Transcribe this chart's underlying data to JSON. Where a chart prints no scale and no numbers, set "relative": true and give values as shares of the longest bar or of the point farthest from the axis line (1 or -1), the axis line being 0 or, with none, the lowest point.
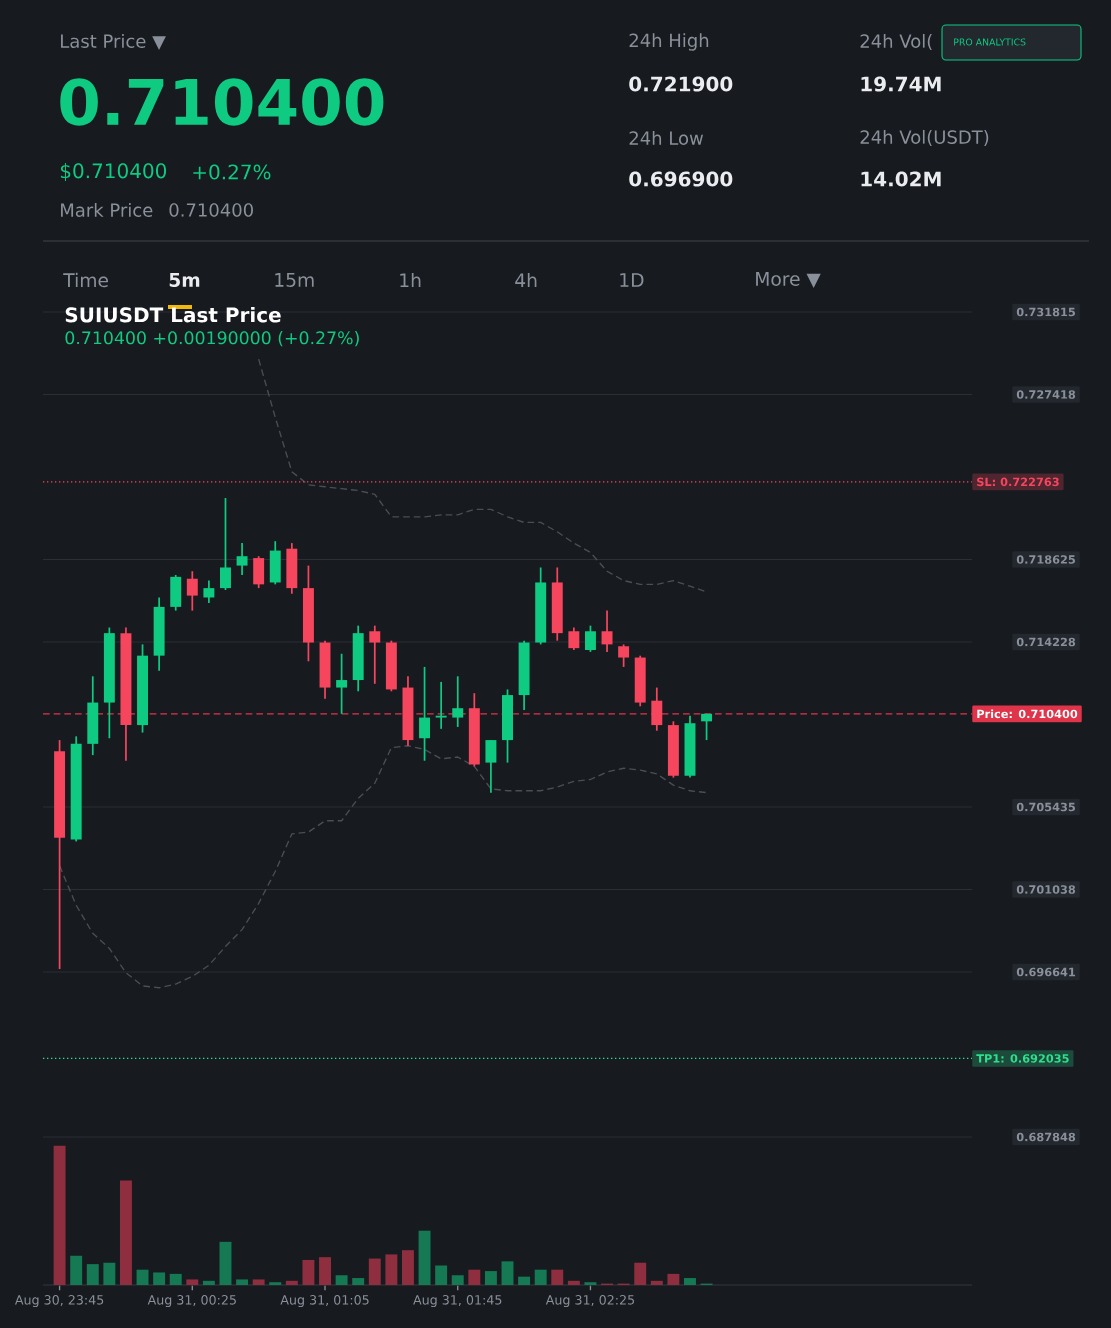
{
  "chart_data": [
    {
      "type": "candlestick",
      "title": "SUIUSDT Last Price",
      "subtitle": "0.710400  +0.00190000 (+0.27%)",
      "annotations": [
        "Last Price ▼",
        "0.710400",
        "$0.710400",
        "+0.27%",
        "Mark Price",
        "0.710400",
        "24h High",
        "0.721900",
        "24h Vol(",
        "19.74M",
        "24h Low",
        "0.696900",
        "24h Vol(USDT)",
        "14.02M",
        "PRO ANALYTICS",
        "Time",
        "5m",
        "15m",
        "1h",
        "4h",
        "1D",
        "More ▼"
      ],
      "categories": [
        null,
        null,
        null,
        null,
        null,
        null,
        null,
        null,
        null,
        null,
        null,
        null,
        null,
        null,
        null,
        null,
        null,
        null,
        null,
        null,
        null,
        null,
        null,
        null,
        null,
        null,
        null,
        null,
        null,
        null,
        null,
        null,
        null,
        null,
        null,
        null,
        null,
        null,
        null,
        null
      ],
      "ohlc": [
        [
          0.7084,
          0.709,
          0.6968,
          0.7038
        ],
        [
          0.7037,
          0.7092,
          0.7036,
          0.7088
        ],
        [
          0.7088,
          0.7124,
          0.7082,
          0.711
        ],
        [
          0.711,
          0.715,
          0.7091,
          0.7147
        ],
        [
          0.7147,
          0.715,
          0.7079,
          0.7098
        ],
        [
          0.7098,
          0.7141,
          0.7094,
          0.7135
        ],
        [
          0.7135,
          0.7166,
          0.7127,
          0.7161
        ],
        [
          0.7161,
          0.7178,
          0.7159,
          0.7177
        ],
        [
          0.7176,
          0.718,
          0.7159,
          0.7167
        ],
        [
          0.7166,
          0.7175,
          0.7163,
          0.7171
        ],
        [
          0.7171,
          0.7219,
          0.717,
          0.7182
        ],
        [
          0.7183,
          0.7195,
          0.7178,
          0.7188
        ],
        [
          0.7187,
          0.7188,
          0.7171,
          0.7173
        ],
        [
          0.7174,
          0.7196,
          0.7173,
          0.7191
        ],
        [
          0.7192,
          0.7195,
          0.7168,
          0.7171
        ],
        [
          0.7171,
          0.7183,
          0.7132,
          0.7142
        ],
        [
          0.7142,
          0.7143,
          0.7112,
          0.7118
        ],
        [
          0.7118,
          0.7136,
          0.7104,
          0.7122
        ],
        [
          0.7122,
          0.7151,
          0.7116,
          0.7147
        ],
        [
          0.7148,
          0.7151,
          0.712,
          0.7142
        ],
        [
          0.7142,
          0.7143,
          0.7116,
          0.7117
        ],
        [
          0.7118,
          0.7124,
          0.7087,
          0.709
        ],
        [
          0.7091,
          0.7129,
          0.7079,
          0.7102
        ],
        [
          0.7102,
          0.7121,
          0.7096,
          0.7103
        ],
        [
          0.7102,
          0.7124,
          0.7097,
          0.7107
        ],
        [
          0.7107,
          0.7115,
          0.7076,
          0.7077
        ],
        [
          0.7078,
          0.709,
          0.7062,
          0.709
        ],
        [
          0.709,
          0.7117,
          0.7078,
          0.7114
        ],
        [
          0.7114,
          0.7143,
          0.7106,
          0.7142
        ],
        [
          0.7142,
          0.7182,
          0.7141,
          0.7174
        ],
        [
          0.7174,
          0.7182,
          0.7143,
          0.7147
        ],
        [
          0.7148,
          0.715,
          0.7138,
          0.7139
        ],
        [
          0.7138,
          0.7151,
          0.7137,
          0.7148
        ],
        [
          0.7148,
          0.7159,
          0.7137,
          0.7141
        ],
        [
          0.714,
          0.7141,
          0.7129,
          0.7134
        ],
        [
          0.7134,
          0.7135,
          0.7108,
          0.711
        ],
        [
          0.7111,
          0.7118,
          0.7095,
          0.7098
        ],
        [
          0.7098,
          0.71,
          0.707,
          0.7071
        ],
        [
          0.7071,
          0.7103,
          0.707,
          0.7099
        ],
        [
          0.71,
          0.7104,
          0.709,
          0.7104
        ]
      ],
      "colors": [
        "#f6465d",
        "#0ecb81",
        "#0ecb81",
        "#0ecb81",
        "#f6465d",
        "#0ecb81",
        "#0ecb81",
        "#0ecb81",
        "#f6465d",
        "#0ecb81",
        "#0ecb81",
        "#0ecb81",
        "#f6465d",
        "#0ecb81",
        "#f6465d",
        "#f6465d",
        "#f6465d",
        "#0ecb81",
        "#0ecb81",
        "#f6465d",
        "#f6465d",
        "#f6465d",
        "#0ecb81",
        "#0ecb81",
        "#0ecb81",
        "#f6465d",
        "#0ecb81",
        "#0ecb81",
        "#0ecb81",
        "#0ecb81",
        "#f6465d",
        "#f6465d",
        "#0ecb81",
        "#f6465d",
        "#f6465d",
        "#f6465d",
        "#f6465d",
        "#f6465d",
        "#0ecb81",
        "#0ecb81"
      ],
      "series": [
        {
          "type": "line",
          "color": "#4a4f57",
          "line_style": "dashed",
          "values": [
            null,
            null,
            null,
            null,
            null,
            null,
            null,
            null,
            null,
            null,
            null,
            null,
            0.7293,
            0.7262,
            0.7233,
            0.7226,
            0.7225,
            0.7224,
            0.7223,
            0.7221,
            0.7209,
            0.7209,
            0.7209,
            0.721,
            0.721,
            0.7213,
            0.7213,
            0.7209,
            0.7206,
            0.7206,
            0.7201,
            0.7195,
            0.719,
            0.718,
            0.7175,
            0.7173,
            0.7173,
            0.7175,
            0.7172,
            0.7169
          ]
        },
        {
          "type": "line",
          "color": "#4a4f57",
          "line_style": "dashed",
          "values": [
            0.7023,
            0.7002,
            0.6987,
            0.6979,
            0.6966,
            0.6959,
            0.6958,
            0.696,
            0.6964,
            0.697,
            0.698,
            0.6989,
            0.7003,
            0.702,
            0.704,
            0.7041,
            0.7047,
            0.7047,
            0.7059,
            0.7067,
            0.7086,
            0.7087,
            0.7085,
            0.708,
            0.7081,
            0.7076,
            0.7064,
            0.7063,
            0.7063,
            0.7063,
            0.7065,
            0.7068,
            0.7069,
            0.7073,
            0.7075,
            0.7074,
            0.7072,
            0.7066,
            0.7063,
            0.7062
          ]
        }
      ],
      "ylim": [
        0.687848,
        0.731815
      ],
      "yticks": [
        0.731815,
        0.727418,
        0.718625,
        0.714228,
        0.705435,
        0.701038,
        0.696641,
        0.687848
      ],
      "grid": "y",
      "tick_labels": "y",
      "ref_lines": [
        {
          "axis": "y",
          "value": 0.722763,
          "label": "SL: 0.722763",
          "color": "#f6465d",
          "line_style": "dotted"
        },
        {
          "axis": "y",
          "value": 0.7104,
          "label": "Price: 0.710400",
          "color": "#e0344a",
          "line_style": "dashed"
        },
        {
          "axis": "y",
          "value": 0.692035,
          "label": "TP1: 0.692035",
          "color": "#2ee08e",
          "line_style": "dotted"
        }
      ]
    },
    {
      "type": "bar",
      "relative": true,
      "categories": [
        "Aug 30, 23:45",
        null,
        null,
        null,
        null,
        null,
        null,
        null,
        "Aug 31, 00:25",
        null,
        null,
        null,
        null,
        null,
        null,
        null,
        "Aug 31, 01:05",
        null,
        null,
        null,
        null,
        null,
        null,
        null,
        "Aug 31, 01:45",
        null,
        null,
        null,
        null,
        null,
        null,
        null,
        "Aug 31, 02:25",
        null,
        null,
        null,
        null,
        null,
        null,
        null
      ],
      "values": [
        1,
        0.21,
        0.15,
        0.16,
        0.75,
        0.11,
        0.09,
        0.08,
        0.04,
        0.03,
        0.31,
        0.04,
        0.04,
        0.02,
        0.03,
        0.18,
        0.2,
        0.07,
        0.05,
        0.19,
        0.22,
        0.25,
        0.39,
        0.14,
        0.07,
        0.11,
        0.1,
        0.17,
        0.06,
        0.11,
        0.11,
        0.03,
        0.02,
        0.01,
        0.01,
        0.16,
        0.03,
        0.08,
        0.05,
        0.01
      ],
      "colors": [
        "#8f2e3e",
        "#157a54",
        "#157a54",
        "#157a54",
        "#8f2e3e",
        "#157a54",
        "#157a54",
        "#157a54",
        "#8f2e3e",
        "#157a54",
        "#157a54",
        "#157a54",
        "#8f2e3e",
        "#157a54",
        "#8f2e3e",
        "#8f2e3e",
        "#8f2e3e",
        "#157a54",
        "#157a54",
        "#8f2e3e",
        "#8f2e3e",
        "#8f2e3e",
        "#157a54",
        "#157a54",
        "#157a54",
        "#8f2e3e",
        "#157a54",
        "#157a54",
        "#157a54",
        "#157a54",
        "#8f2e3e",
        "#8f2e3e",
        "#157a54",
        "#8f2e3e",
        "#8f2e3e",
        "#8f2e3e",
        "#8f2e3e",
        "#8f2e3e",
        "#157a54",
        "#157a54"
      ]
    }
  ]
}
